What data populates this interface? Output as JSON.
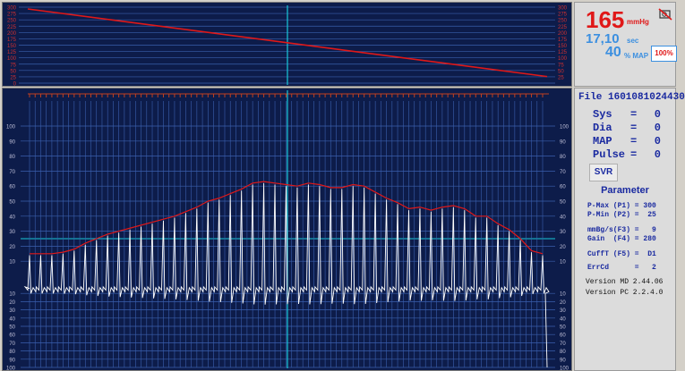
{
  "top_chart": {
    "left_ticks": [
      "300",
      "275",
      "250",
      "225",
      "200",
      "175",
      "150",
      "125",
      "100",
      "75",
      "50",
      "25",
      "0"
    ],
    "right_ticks": [
      "300",
      "275",
      "250",
      "225",
      "200",
      "175",
      "150",
      "125",
      "100",
      "75",
      "50",
      "25"
    ],
    "line_color": "#e01818",
    "cursor_color": "#18c8d8"
  },
  "bottom_chart": {
    "left_ticks_upper": [
      "100",
      "90",
      "80",
      "70",
      "60",
      "50",
      "40",
      "30",
      "20",
      "10"
    ],
    "left_ticks_lower": [
      "10",
      "20",
      "30",
      "40",
      "50",
      "60",
      "70",
      "80",
      "90",
      "100"
    ],
    "right_ticks_upper": [
      "100",
      "90",
      "80",
      "70",
      "60",
      "50",
      "40",
      "30",
      "20",
      "10"
    ],
    "right_ticks_lower": [
      "10",
      "20",
      "30",
      "40",
      "50",
      "60",
      "70",
      "80",
      "90",
      "100"
    ],
    "envelope_color": "#e01818",
    "waveform_color": "#ffffff"
  },
  "chart_data": [
    {
      "type": "line",
      "series": [
        {
          "values_x": [
            0,
            1
          ],
          "values_y": [
            300,
            26
          ]
        }
      ],
      "ylim": [
        0,
        300
      ]
    },
    {
      "type": "line",
      "envelope_y": [
        15,
        15,
        15,
        16,
        18,
        22,
        25,
        28,
        30,
        32,
        34,
        36,
        38,
        40,
        43,
        46,
        50,
        52,
        55,
        58,
        62,
        63,
        62,
        61,
        60,
        62,
        61,
        59,
        59,
        61,
        60,
        56,
        52,
        49,
        45,
        46,
        44,
        46,
        47,
        45,
        40,
        40,
        35,
        31,
        25,
        17,
        15
      ],
      "ylim": [
        -100,
        100
      ]
    }
  ],
  "status": {
    "pressure_value": "165",
    "pressure_unit": "mmHg",
    "time_value": "17,10",
    "time_unit": "sec",
    "map_value": "40",
    "map_unit": "% MAP",
    "percent_button": "100%",
    "icon": "no-pump-icon"
  },
  "results": {
    "file_label": "File 1601081024430",
    "rows": [
      {
        "label": "Sys",
        "eq": "=",
        "value": "0"
      },
      {
        "label": "Dia",
        "eq": "=",
        "value": "0"
      },
      {
        "label": "MAP",
        "eq": "=",
        "value": "0"
      },
      {
        "label": "Pulse",
        "eq": "=",
        "value": "0"
      }
    ],
    "svr_button": "SVR"
  },
  "parameters": {
    "title": "Parameter",
    "rows": [
      "P-Max (P1) = 300",
      "P-Min (P2) =  25",
      "mmBg/s(F3) =   9",
      "Gain  (F4) = 280",
      "CuffT (F5) =  D1",
      "ErrCd      =   2"
    ],
    "version_md": "Version MD 2.44.06",
    "version_pc": "Version PC 2.2.4.0"
  }
}
